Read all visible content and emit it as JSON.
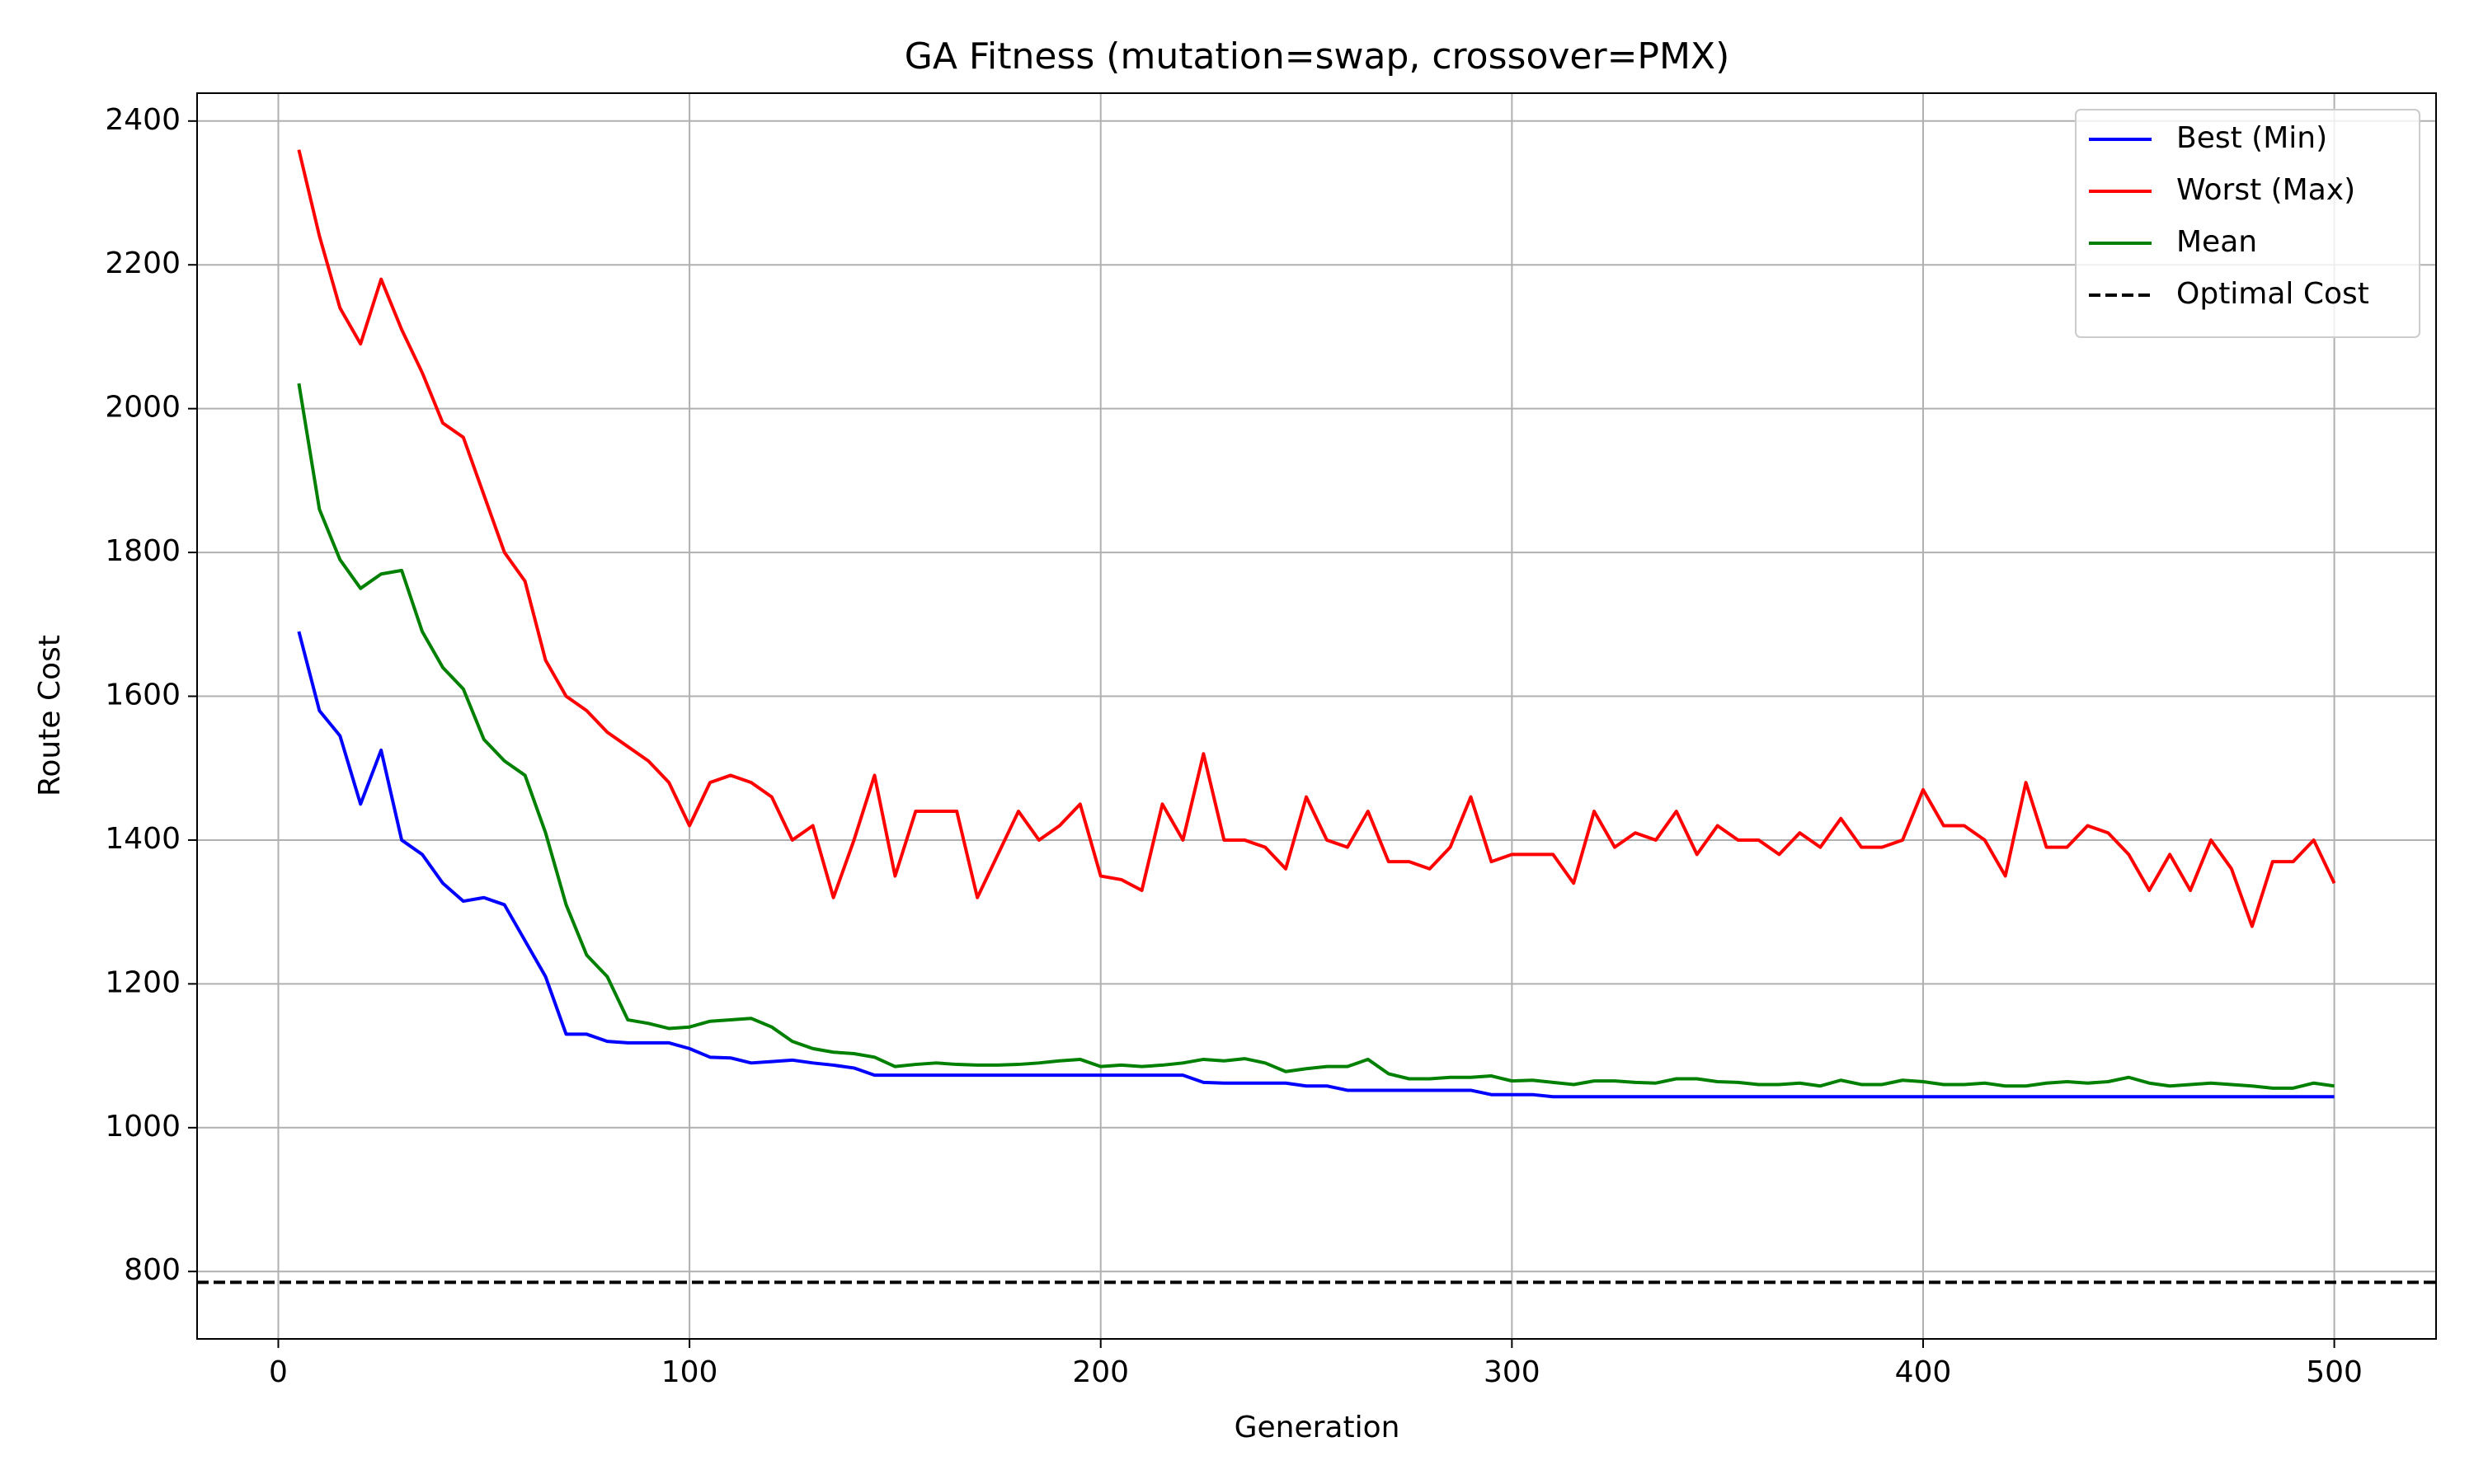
{
  "chart_data": {
    "type": "line",
    "title": "GA Fitness (mutation=swap, crossover=PMX)",
    "xlabel": "Generation",
    "ylabel": "Route Cost",
    "x": [
      5,
      10,
      15,
      20,
      25,
      30,
      35,
      40,
      45,
      50,
      55,
      60,
      65,
      70,
      75,
      80,
      85,
      90,
      95,
      100,
      105,
      110,
      115,
      120,
      125,
      130,
      135,
      140,
      145,
      150,
      155,
      160,
      165,
      170,
      175,
      180,
      185,
      190,
      195,
      200,
      205,
      210,
      215,
      220,
      225,
      230,
      235,
      240,
      245,
      250,
      255,
      260,
      265,
      270,
      275,
      280,
      285,
      290,
      295,
      300,
      305,
      310,
      315,
      320,
      325,
      330,
      335,
      340,
      345,
      350,
      355,
      360,
      365,
      370,
      375,
      380,
      385,
      390,
      395,
      400,
      405,
      410,
      415,
      420,
      425,
      430,
      435,
      440,
      445,
      450,
      455,
      460,
      465,
      470,
      475,
      480,
      485,
      490,
      495,
      500
    ],
    "series": [
      {
        "name": "Best (Min)",
        "color": "#0000ff",
        "values": [
          1690,
          1580,
          1545,
          1450,
          1525,
          1400,
          1380,
          1340,
          1315,
          1320,
          1310,
          1260,
          1210,
          1130,
          1130,
          1120,
          1118,
          1118,
          1118,
          1110,
          1098,
          1097,
          1090,
          1092,
          1094,
          1090,
          1087,
          1083,
          1073,
          1073,
          1073,
          1073,
          1073,
          1073,
          1073,
          1073,
          1073,
          1073,
          1073,
          1073,
          1073,
          1073,
          1073,
          1073,
          1063,
          1062,
          1062,
          1062,
          1062,
          1058,
          1058,
          1052,
          1052,
          1052,
          1052,
          1052,
          1052,
          1052,
          1046,
          1046,
          1046,
          1043,
          1043,
          1043,
          1043,
          1043,
          1043,
          1043,
          1043,
          1043,
          1043,
          1043,
          1043,
          1043,
          1043,
          1043,
          1043,
          1043,
          1043,
          1043,
          1043,
          1043,
          1043,
          1043,
          1043,
          1043,
          1043,
          1043,
          1043,
          1043,
          1043,
          1043,
          1043,
          1043,
          1043,
          1043,
          1043,
          1043,
          1043,
          1043
        ]
      },
      {
        "name": "Worst (Max)",
        "color": "#ff0000",
        "values": [
          2360,
          2240,
          2140,
          2090,
          2180,
          2110,
          2050,
          1980,
          1960,
          1880,
          1800,
          1760,
          1650,
          1600,
          1580,
          1550,
          1530,
          1510,
          1480,
          1420,
          1480,
          1490,
          1480,
          1460,
          1400,
          1420,
          1320,
          1400,
          1490,
          1350,
          1440,
          1440,
          1440,
          1320,
          1380,
          1440,
          1400,
          1420,
          1450,
          1350,
          1345,
          1330,
          1450,
          1400,
          1520,
          1400,
          1400,
          1390,
          1360,
          1460,
          1400,
          1390,
          1440,
          1370,
          1370,
          1360,
          1390,
          1460,
          1370,
          1380,
          1380,
          1380,
          1340,
          1440,
          1390,
          1410,
          1400,
          1440,
          1380,
          1420,
          1400,
          1400,
          1380,
          1410,
          1390,
          1430,
          1390,
          1390,
          1400,
          1470,
          1420,
          1420,
          1400,
          1350,
          1480,
          1390,
          1390,
          1420,
          1410,
          1380,
          1330,
          1380,
          1330,
          1400,
          1360,
          1280,
          1370,
          1370,
          1400,
          1340
        ]
      },
      {
        "name": "Mean",
        "color": "#008000",
        "values": [
          2035,
          1860,
          1790,
          1750,
          1770,
          1775,
          1690,
          1640,
          1610,
          1540,
          1510,
          1490,
          1410,
          1310,
          1240,
          1210,
          1150,
          1145,
          1138,
          1140,
          1148,
          1150,
          1152,
          1140,
          1120,
          1110,
          1105,
          1103,
          1098,
          1085,
          1088,
          1090,
          1088,
          1087,
          1087,
          1088,
          1090,
          1093,
          1095,
          1085,
          1087,
          1085,
          1087,
          1090,
          1095,
          1093,
          1096,
          1090,
          1078,
          1082,
          1085,
          1085,
          1095,
          1075,
          1068,
          1068,
          1070,
          1070,
          1072,
          1065,
          1066,
          1063,
          1060,
          1065,
          1065,
          1063,
          1062,
          1068,
          1068,
          1064,
          1063,
          1060,
          1060,
          1062,
          1058,
          1066,
          1060,
          1060,
          1066,
          1064,
          1060,
          1060,
          1062,
          1058,
          1058,
          1062,
          1064,
          1062,
          1064,
          1070,
          1062,
          1058,
          1060,
          1062,
          1060,
          1058,
          1055,
          1055,
          1062,
          1058
        ]
      }
    ],
    "hlines": [
      {
        "name": "Optimal Cost",
        "value": 785,
        "color": "#000000",
        "dashed": true
      }
    ],
    "xlim": [
      -19.75,
      524.75
    ],
    "xticks": [
      0,
      100,
      200,
      300,
      400,
      500
    ],
    "ylim": [
      706.25,
      2438.75
    ],
    "yticks": [
      800,
      1000,
      1200,
      1400,
      1600,
      1800,
      2000,
      2200,
      2400
    ],
    "grid": true,
    "legend": "upper right"
  }
}
